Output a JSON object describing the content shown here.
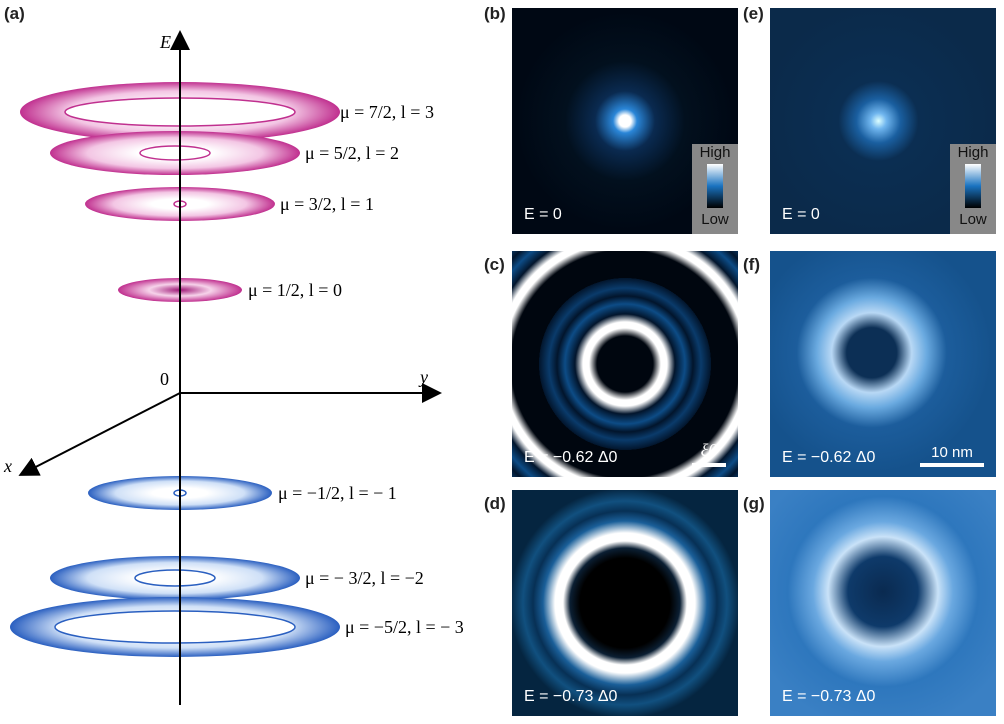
{
  "panels": {
    "a": {
      "label": "(a)",
      "axis_e": "E",
      "axis_y": "y",
      "axis_x": "x",
      "origin": "0",
      "levels": [
        {
          "text": "μ = 7/2, l = 3",
          "color": "pink"
        },
        {
          "text": "μ = 5/2, l = 2",
          "color": "pink"
        },
        {
          "text": "μ = 3/2, l = 1",
          "color": "pink"
        },
        {
          "text": "μ = 1/2, l = 0",
          "color": "pink"
        },
        {
          "text": "μ = −1/2, l = − 1",
          "color": "blue"
        },
        {
          "text": "μ = − 3/2, l = −2",
          "color": "blue"
        },
        {
          "text": "μ = −5/2, l = − 3",
          "color": "blue"
        }
      ]
    },
    "b": {
      "label": "(b)",
      "energy": "E = 0",
      "cbar_high": "High",
      "cbar_low": "Low"
    },
    "c": {
      "label": "(c)",
      "energy": "E = −0.62 Δ0",
      "scale": "ξ0"
    },
    "d": {
      "label": "(d)",
      "energy": "E = −0.73 Δ0"
    },
    "e": {
      "label": "(e)",
      "energy": "E = 0",
      "cbar_high": "High",
      "cbar_low": "Low"
    },
    "f": {
      "label": "(f)",
      "energy": "E = −0.62 Δ0",
      "scale": "10 nm"
    },
    "g": {
      "label": "(g)",
      "energy": "E = −0.73 Δ0"
    }
  },
  "colors": {
    "pink": "#c0308f",
    "blue": "#2a5fc0",
    "map": "#1a73c0"
  }
}
